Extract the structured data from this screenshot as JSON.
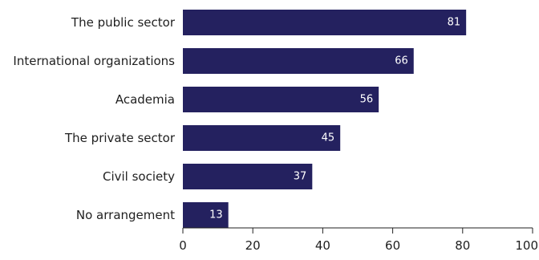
{
  "chart_data": {
    "type": "bar",
    "orientation": "horizontal",
    "categories": [
      "The public sector",
      "International organizations",
      "Academia",
      "The private sector",
      "Civil society",
      "No arrangement"
    ],
    "values": [
      81,
      66,
      56,
      45,
      37,
      13
    ],
    "data_labels": [
      "81",
      "66",
      "56",
      "45",
      "37",
      "13"
    ],
    "xlim": [
      0,
      100
    ],
    "x_ticks": [
      0,
      20,
      40,
      60,
      80,
      100
    ],
    "x_tick_labels": [
      "0",
      "20",
      "40",
      "60",
      "80",
      "100"
    ],
    "grid": false,
    "legend": "none",
    "colors": {
      "bar": "#24215f",
      "value_text": "#ffffff",
      "axis": "#222222",
      "text": "#1f1f1f"
    }
  }
}
